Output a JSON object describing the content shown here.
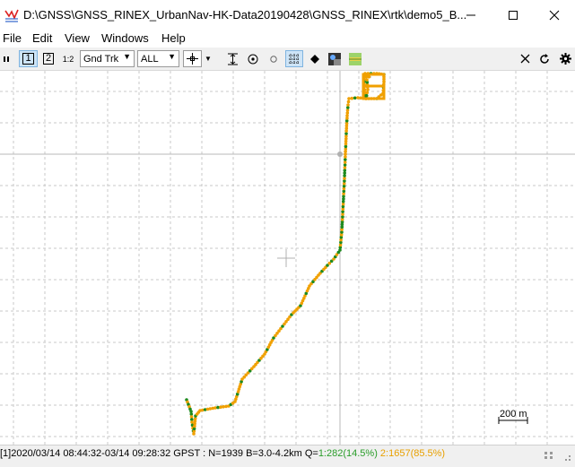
{
  "window": {
    "title": "D:\\GNSS\\GNSS_RINEX_UrbanNav-HK-Data20190428\\GNSS_RINEX\\rtk\\demo5_B..."
  },
  "menu": [
    "File",
    "Edit",
    "View",
    "Windows",
    "Help"
  ],
  "toolbar": {
    "btn1": "1",
    "btn2": "2",
    "btn12": "1:2",
    "plot_type": "Gnd Trk",
    "quality_filter": "ALL"
  },
  "plot": {
    "scale_label": "200 m",
    "colors": {
      "fix": "#1e8a1e",
      "float": "#f0a000",
      "grid": "#c8c8c8",
      "track": "#a0a0a0"
    }
  },
  "status": {
    "prefix": "[1]2020/03/14 08:44:32-03/14 09:28:32 GPST : N=1939 B=3.0-4.2km Q=",
    "q1": "1:282(14.5%)",
    "q2": "2:1657(85.5%)"
  }
}
